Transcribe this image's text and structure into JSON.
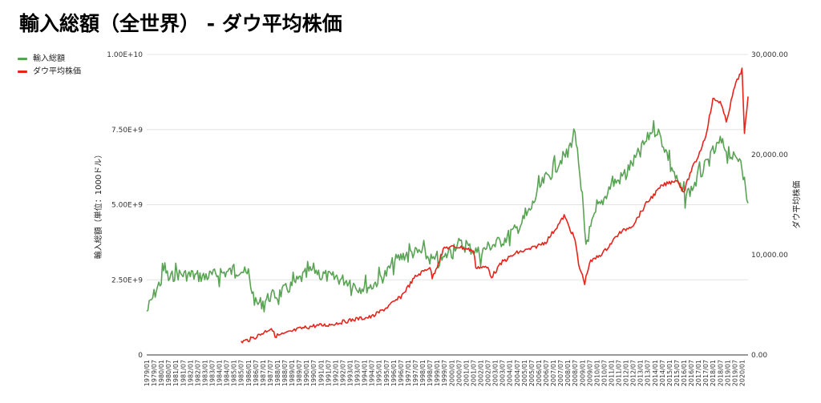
{
  "chart_data": {
    "type": "line",
    "title": "輸入総額（全世界） - ダウ平均株価",
    "y_left_label": "輸入総額（単位：1000ドル）",
    "y_right_label": "ダウ平均株価",
    "y_left_range": [
      0,
      10000000000
    ],
    "y_right_range": [
      0,
      30000
    ],
    "y_left_ticks": [
      "0",
      "2.50E+9",
      "5.00E+9",
      "7.50E+9",
      "1.00E+10"
    ],
    "y_right_ticks": [
      "0.00",
      "10,000.00",
      "20,000.00",
      "30,000.00"
    ],
    "x_range": [
      "1979/01",
      "2020/06"
    ],
    "x_tick_labels": [
      "1979/01",
      "1979/07",
      "1980/01",
      "1980/07",
      "1981/01",
      "1981/07",
      "1982/01",
      "1982/07",
      "1983/01",
      "1983/07",
      "1984/01",
      "1984/07",
      "1985/01",
      "1985/07",
      "1986/01",
      "1986/07",
      "1987/01",
      "1987/07",
      "1988/01",
      "1988/07",
      "1989/01",
      "1989/07",
      "1990/01",
      "1990/07",
      "1991/01",
      "1991/07",
      "1992/01",
      "1992/07",
      "1993/01",
      "1993/07",
      "1994/01",
      "1994/07",
      "1995/01",
      "1995/07",
      "1996/01",
      "1996/07",
      "1997/01",
      "1997/07",
      "1998/01",
      "1998/07",
      "1999/01",
      "1999/07",
      "2000/01",
      "2000/07",
      "2001/01",
      "2001/07",
      "2002/01",
      "2002/07",
      "2003/01",
      "2003/07",
      "2004/01",
      "2004/07",
      "2005/01",
      "2005/07",
      "2006/01",
      "2006/07",
      "2007/01",
      "2007/07",
      "2008/01",
      "2008/07",
      "2009/01",
      "2009/07",
      "2010/01",
      "2010/07",
      "2011/01",
      "2011/07",
      "2012/01",
      "2012/07",
      "2013/01",
      "2013/07",
      "2014/01",
      "2014/07",
      "2015/01",
      "2015/07",
      "2016/01",
      "2016/07",
      "2017/01",
      "2017/07",
      "2018/01",
      "2018/07",
      "2019/01",
      "2019/07",
      "2020/01"
    ],
    "series": [
      {
        "name": "輸入総額",
        "axis": "left",
        "color": "#5aa355",
        "points": [
          [
            "1979/01",
            1450000000
          ],
          [
            "1979/07",
            2000000000
          ],
          [
            "1980/01",
            2500000000
          ],
          [
            "1980/04",
            2950000000
          ],
          [
            "1980/07",
            2500000000
          ],
          [
            "1981/01",
            2700000000
          ],
          [
            "1982/01",
            2650000000
          ],
          [
            "1983/01",
            2600000000
          ],
          [
            "1984/01",
            2700000000
          ],
          [
            "1985/01",
            2800000000
          ],
          [
            "1985/07",
            2850000000
          ],
          [
            "1986/01",
            2600000000
          ],
          [
            "1986/07",
            1700000000
          ],
          [
            "1987/01",
            1750000000
          ],
          [
            "1987/07",
            1950000000
          ],
          [
            "1988/01",
            2000000000
          ],
          [
            "1989/01",
            2300000000
          ],
          [
            "1989/07",
            2500000000
          ],
          [
            "1990/01",
            2700000000
          ],
          [
            "1990/07",
            2850000000
          ],
          [
            "1991/01",
            2700000000
          ],
          [
            "1991/07",
            2600000000
          ],
          [
            "1992/01",
            2550000000
          ],
          [
            "1993/01",
            2450000000
          ],
          [
            "1993/07",
            2250000000
          ],
          [
            "1994/01",
            2250000000
          ],
          [
            "1994/07",
            2300000000
          ],
          [
            "1995/01",
            2500000000
          ],
          [
            "1995/07",
            2700000000
          ],
          [
            "1996/01",
            3100000000
          ],
          [
            "1997/01",
            3400000000
          ],
          [
            "1998/01",
            3400000000
          ],
          [
            "1998/07",
            3200000000
          ],
          [
            "1999/01",
            3100000000
          ],
          [
            "1999/07",
            3200000000
          ],
          [
            "2000/01",
            3600000000
          ],
          [
            "2000/07",
            3700000000
          ],
          [
            "2001/01",
            3600000000
          ],
          [
            "2001/07",
            3500000000
          ],
          [
            "2002/01",
            3400000000
          ],
          [
            "2002/07",
            3600000000
          ],
          [
            "2003/01",
            3700000000
          ],
          [
            "2003/07",
            3800000000
          ],
          [
            "2004/01",
            4000000000
          ],
          [
            "2004/07",
            4200000000
          ],
          [
            "2005/01",
            4500000000
          ],
          [
            "2005/07",
            4900000000
          ],
          [
            "2006/01",
            5500000000
          ],
          [
            "2006/07",
            5900000000
          ],
          [
            "2007/01",
            6100000000
          ],
          [
            "2007/07",
            6500000000
          ],
          [
            "2008/01",
            6700000000
          ],
          [
            "2008/07",
            7500000000
          ],
          [
            "2009/01",
            5000000000
          ],
          [
            "2009/04",
            3700000000
          ],
          [
            "2009/07",
            4100000000
          ],
          [
            "2010/01",
            4800000000
          ],
          [
            "2010/07",
            5200000000
          ],
          [
            "2011/01",
            5700000000
          ],
          [
            "2011/07",
            5800000000
          ],
          [
            "2012/01",
            6100000000
          ],
          [
            "2012/07",
            6400000000
          ],
          [
            "2013/01",
            6800000000
          ],
          [
            "2013/07",
            7200000000
          ],
          [
            "2014/01",
            7700000000
          ],
          [
            "2014/07",
            7100000000
          ],
          [
            "2015/01",
            6500000000
          ],
          [
            "2015/07",
            5800000000
          ],
          [
            "2016/01",
            5300000000
          ],
          [
            "2016/07",
            5500000000
          ],
          [
            "2017/01",
            5900000000
          ],
          [
            "2017/07",
            6300000000
          ],
          [
            "2018/01",
            6700000000
          ],
          [
            "2018/07",
            7100000000
          ],
          [
            "2019/01",
            6800000000
          ],
          [
            "2019/07",
            6500000000
          ],
          [
            "2020/01",
            6600000000
          ],
          [
            "2020/04",
            5400000000
          ],
          [
            "2020/06",
            5050000000
          ]
        ]
      },
      {
        "name": "ダウ平均株価",
        "axis": "right",
        "color": "#e8231c",
        "points": [
          [
            "1985/07",
            1300
          ],
          [
            "1986/01",
            1500
          ],
          [
            "1986/07",
            1800
          ],
          [
            "1987/01",
            2200
          ],
          [
            "1987/08",
            2700
          ],
          [
            "1987/11",
            1900
          ],
          [
            "1988/07",
            2100
          ],
          [
            "1989/07",
            2600
          ],
          [
            "1990/07",
            2900
          ],
          [
            "1991/07",
            3000
          ],
          [
            "1992/07",
            3300
          ],
          [
            "1993/07",
            3600
          ],
          [
            "1994/07",
            3800
          ],
          [
            "1995/07",
            4700
          ],
          [
            "1996/07",
            5800
          ],
          [
            "1997/07",
            7800
          ],
          [
            "1998/07",
            8800
          ],
          [
            "1998/09",
            7700
          ],
          [
            "1999/07",
            10700
          ],
          [
            "2000/07",
            10800
          ],
          [
            "2001/07",
            10400
          ],
          [
            "2001/09",
            8800
          ],
          [
            "2002/07",
            8700
          ],
          [
            "2002/10",
            7800
          ],
          [
            "2003/07",
            9300
          ],
          [
            "2004/07",
            10200
          ],
          [
            "2005/07",
            10600
          ],
          [
            "2006/07",
            11300
          ],
          [
            "2007/07",
            13300
          ],
          [
            "2007/10",
            13900
          ],
          [
            "2008/07",
            11500
          ],
          [
            "2008/10",
            9000
          ],
          [
            "2009/03",
            7200
          ],
          [
            "2009/07",
            9200
          ],
          [
            "2010/07",
            10300
          ],
          [
            "2011/07",
            12100
          ],
          [
            "2012/07",
            13000
          ],
          [
            "2013/07",
            15300
          ],
          [
            "2014/07",
            16900
          ],
          [
            "2015/07",
            17500
          ],
          [
            "2016/01",
            16300
          ],
          [
            "2016/07",
            18400
          ],
          [
            "2017/01",
            19900
          ],
          [
            "2017/07",
            21900
          ],
          [
            "2018/01",
            25500
          ],
          [
            "2018/07",
            25300
          ],
          [
            "2018/12",
            23300
          ],
          [
            "2019/07",
            26800
          ],
          [
            "2020/01",
            28500
          ],
          [
            "2020/03",
            22000
          ],
          [
            "2020/06",
            25800
          ]
        ]
      }
    ]
  }
}
